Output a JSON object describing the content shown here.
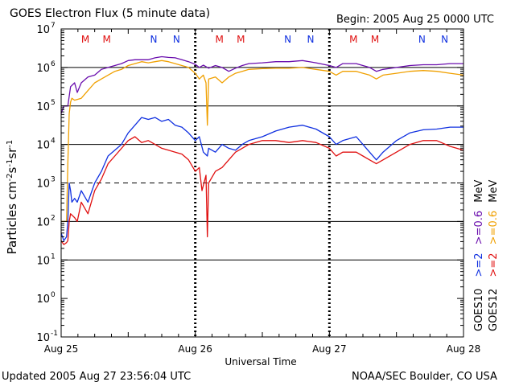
{
  "title": "GOES Electron Flux (5 minute data)",
  "begin_label": "Begin: 2005 Aug 25 0000 UTC",
  "updated_label": "Updated 2005 Aug 27 23:56:04 UTC",
  "credit_label": "NOAA/SEC Boulder, CO USA",
  "colors": {
    "goes10_06": "#6a0dad",
    "goes12_06": "#f0a000",
    "goes10_2": "#1030e0",
    "goes12_2": "#e01010",
    "marker_M": "#e01010",
    "marker_N": "#1030e0"
  },
  "legend": {
    "goes10": {
      "name": "GOES10",
      "thr2": ">=2",
      "thr06": ">=0.6"
    },
    "goes12": {
      "name": "GOES12",
      "thr2": ">=2",
      "thr06": ">=0.6"
    },
    "unit": "MeV"
  },
  "markers": [
    {
      "day": 0.18,
      "label": "M"
    },
    {
      "day": 0.34,
      "label": "M"
    },
    {
      "day": 0.69,
      "label": "N"
    },
    {
      "day": 0.86,
      "label": "N"
    },
    {
      "day": 1.18,
      "label": "M"
    },
    {
      "day": 1.34,
      "label": "M"
    },
    {
      "day": 1.69,
      "label": "N"
    },
    {
      "day": 1.86,
      "label": "N"
    },
    {
      "day": 2.18,
      "label": "M"
    },
    {
      "day": 2.34,
      "label": "M"
    },
    {
      "day": 2.69,
      "label": "N"
    },
    {
      "day": 2.86,
      "label": "N"
    }
  ],
  "chart_data": {
    "type": "line",
    "xlabel": "Universal Time",
    "ylabel": "Particles cm-2s-1sr-1",
    "x_unit": "days since 2005 Aug 25 0000 UTC",
    "xlim": [
      0,
      3
    ],
    "x_ticks": [
      {
        "value": 0,
        "label": "Aug 25"
      },
      {
        "value": 1,
        "label": "Aug 26"
      },
      {
        "value": 2,
        "label": "Aug 27"
      },
      {
        "value": 3,
        "label": "Aug 28"
      }
    ],
    "y_scale": "log",
    "ylim_exp": [
      -1,
      7
    ],
    "y_ticks": [
      {
        "exp": -1,
        "label": "10",
        "sup": "-1"
      },
      {
        "exp": 0,
        "label": "10",
        "sup": "0"
      },
      {
        "exp": 1,
        "label": "10",
        "sup": "1"
      },
      {
        "exp": 2,
        "label": "10",
        "sup": "2"
      },
      {
        "exp": 3,
        "label": "10",
        "sup": "3"
      },
      {
        "exp": 4,
        "label": "10",
        "sup": "4"
      },
      {
        "exp": 5,
        "label": "10",
        "sup": "5"
      },
      {
        "exp": 6,
        "label": "10",
        "sup": "6"
      },
      {
        "exp": 7,
        "label": "10",
        "sup": "7"
      }
    ],
    "gridlines_exp": [
      1,
      2,
      3,
      4,
      5,
      6
    ],
    "dashed_gridline_exp": 3,
    "series": [
      {
        "name": "GOES10 >=0.6 MeV",
        "color_key": "goes10_06",
        "points": [
          [
            0,
            4.8
          ],
          [
            0.02,
            5.0
          ],
          [
            0.05,
            5.0
          ],
          [
            0.07,
            5.5
          ],
          [
            0.1,
            5.6
          ],
          [
            0.12,
            5.35
          ],
          [
            0.15,
            5.6
          ],
          [
            0.2,
            5.75
          ],
          [
            0.25,
            5.8
          ],
          [
            0.3,
            5.95
          ],
          [
            0.35,
            6.0
          ],
          [
            0.4,
            6.05
          ],
          [
            0.45,
            6.1
          ],
          [
            0.5,
            6.18
          ],
          [
            0.55,
            6.2
          ],
          [
            0.6,
            6.2
          ],
          [
            0.65,
            6.2
          ],
          [
            0.7,
            6.25
          ],
          [
            0.75,
            6.28
          ],
          [
            0.8,
            6.26
          ],
          [
            0.85,
            6.25
          ],
          [
            0.9,
            6.2
          ],
          [
            0.95,
            6.15
          ],
          [
            1.0,
            6.08
          ],
          [
            1.03,
            6.0
          ],
          [
            1.06,
            6.06
          ],
          [
            1.1,
            5.98
          ],
          [
            1.15,
            6.05
          ],
          [
            1.2,
            6.0
          ],
          [
            1.25,
            5.9
          ],
          [
            1.3,
            5.98
          ],
          [
            1.35,
            6.05
          ],
          [
            1.4,
            6.1
          ],
          [
            1.5,
            6.12
          ],
          [
            1.6,
            6.15
          ],
          [
            1.7,
            6.15
          ],
          [
            1.8,
            6.18
          ],
          [
            1.9,
            6.12
          ],
          [
            2.0,
            6.05
          ],
          [
            2.05,
            6.0
          ],
          [
            2.1,
            6.1
          ],
          [
            2.2,
            6.1
          ],
          [
            2.25,
            6.05
          ],
          [
            2.3,
            6.0
          ],
          [
            2.35,
            5.9
          ],
          [
            2.4,
            5.95
          ],
          [
            2.5,
            6.0
          ],
          [
            2.6,
            6.05
          ],
          [
            2.7,
            6.07
          ],
          [
            2.8,
            6.07
          ],
          [
            2.9,
            6.1
          ],
          [
            3.0,
            6.1
          ]
        ]
      },
      {
        "name": "GOES12 >=0.6 MeV",
        "color_key": "goes12_06",
        "points": [
          [
            0,
            2.0
          ],
          [
            0.02,
            2.0
          ],
          [
            0.04,
            2.0
          ],
          [
            0.05,
            3.5
          ],
          [
            0.06,
            4.8
          ],
          [
            0.07,
            5.1
          ],
          [
            0.08,
            5.2
          ],
          [
            0.1,
            5.15
          ],
          [
            0.15,
            5.2
          ],
          [
            0.2,
            5.4
          ],
          [
            0.25,
            5.6
          ],
          [
            0.3,
            5.7
          ],
          [
            0.35,
            5.8
          ],
          [
            0.4,
            5.9
          ],
          [
            0.45,
            5.95
          ],
          [
            0.5,
            6.05
          ],
          [
            0.55,
            6.1
          ],
          [
            0.6,
            6.15
          ],
          [
            0.65,
            6.12
          ],
          [
            0.7,
            6.15
          ],
          [
            0.75,
            6.18
          ],
          [
            0.8,
            6.15
          ],
          [
            0.85,
            6.1
          ],
          [
            0.9,
            6.05
          ],
          [
            0.95,
            6.0
          ],
          [
            1.0,
            5.85
          ],
          [
            1.03,
            5.7
          ],
          [
            1.06,
            5.8
          ],
          [
            1.08,
            5.6
          ],
          [
            1.09,
            4.5
          ],
          [
            1.1,
            5.7
          ],
          [
            1.15,
            5.75
          ],
          [
            1.2,
            5.6
          ],
          [
            1.25,
            5.75
          ],
          [
            1.3,
            5.85
          ],
          [
            1.35,
            5.9
          ],
          [
            1.4,
            5.95
          ],
          [
            1.5,
            5.97
          ],
          [
            1.6,
            5.98
          ],
          [
            1.7,
            5.98
          ],
          [
            1.8,
            6.0
          ],
          [
            1.9,
            5.95
          ],
          [
            2.0,
            5.9
          ],
          [
            2.05,
            5.8
          ],
          [
            2.1,
            5.9
          ],
          [
            2.2,
            5.9
          ],
          [
            2.25,
            5.85
          ],
          [
            2.3,
            5.8
          ],
          [
            2.35,
            5.7
          ],
          [
            2.4,
            5.8
          ],
          [
            2.5,
            5.85
          ],
          [
            2.6,
            5.9
          ],
          [
            2.7,
            5.92
          ],
          [
            2.8,
            5.9
          ],
          [
            2.9,
            5.85
          ],
          [
            3.0,
            5.8
          ]
        ]
      },
      {
        "name": "GOES10 >=2 MeV",
        "color_key": "goes10_2",
        "points": [
          [
            0,
            1.7
          ],
          [
            0.02,
            1.5
          ],
          [
            0.04,
            1.6
          ],
          [
            0.05,
            2.0
          ],
          [
            0.06,
            3.0
          ],
          [
            0.07,
            2.8
          ],
          [
            0.08,
            2.5
          ],
          [
            0.1,
            2.6
          ],
          [
            0.12,
            2.5
          ],
          [
            0.15,
            2.8
          ],
          [
            0.2,
            2.5
          ],
          [
            0.25,
            3.0
          ],
          [
            0.3,
            3.3
          ],
          [
            0.35,
            3.7
          ],
          [
            0.4,
            3.85
          ],
          [
            0.45,
            4.0
          ],
          [
            0.5,
            4.3
          ],
          [
            0.55,
            4.5
          ],
          [
            0.6,
            4.7
          ],
          [
            0.65,
            4.65
          ],
          [
            0.7,
            4.7
          ],
          [
            0.75,
            4.6
          ],
          [
            0.8,
            4.65
          ],
          [
            0.85,
            4.5
          ],
          [
            0.9,
            4.45
          ],
          [
            0.95,
            4.3
          ],
          [
            1.0,
            4.1
          ],
          [
            1.03,
            4.2
          ],
          [
            1.06,
            3.8
          ],
          [
            1.09,
            3.7
          ],
          [
            1.1,
            3.9
          ],
          [
            1.15,
            3.8
          ],
          [
            1.2,
            4.0
          ],
          [
            1.25,
            3.9
          ],
          [
            1.3,
            3.85
          ],
          [
            1.35,
            4.0
          ],
          [
            1.4,
            4.1
          ],
          [
            1.5,
            4.2
          ],
          [
            1.6,
            4.35
          ],
          [
            1.7,
            4.45
          ],
          [
            1.8,
            4.5
          ],
          [
            1.9,
            4.4
          ],
          [
            2.0,
            4.2
          ],
          [
            2.05,
            4.0
          ],
          [
            2.1,
            4.1
          ],
          [
            2.2,
            4.2
          ],
          [
            2.25,
            4.0
          ],
          [
            2.3,
            3.8
          ],
          [
            2.35,
            3.6
          ],
          [
            2.4,
            3.8
          ],
          [
            2.5,
            4.1
          ],
          [
            2.6,
            4.3
          ],
          [
            2.7,
            4.38
          ],
          [
            2.8,
            4.4
          ],
          [
            2.9,
            4.45
          ],
          [
            3.0,
            4.45
          ]
        ]
      },
      {
        "name": "GOES12 >=2 MeV",
        "color_key": "goes12_2",
        "points": [
          [
            0,
            1.5
          ],
          [
            0.02,
            1.4
          ],
          [
            0.04,
            1.45
          ],
          [
            0.05,
            1.5
          ],
          [
            0.06,
            2.0
          ],
          [
            0.07,
            2.2
          ],
          [
            0.1,
            2.1
          ],
          [
            0.12,
            2.0
          ],
          [
            0.15,
            2.5
          ],
          [
            0.2,
            2.2
          ],
          [
            0.25,
            2.8
          ],
          [
            0.3,
            3.1
          ],
          [
            0.35,
            3.5
          ],
          [
            0.4,
            3.7
          ],
          [
            0.45,
            3.9
          ],
          [
            0.5,
            4.1
          ],
          [
            0.55,
            4.2
          ],
          [
            0.6,
            4.05
          ],
          [
            0.65,
            4.1
          ],
          [
            0.7,
            4.0
          ],
          [
            0.75,
            3.9
          ],
          [
            0.8,
            3.85
          ],
          [
            0.85,
            3.8
          ],
          [
            0.9,
            3.75
          ],
          [
            0.95,
            3.6
          ],
          [
            1.0,
            3.3
          ],
          [
            1.03,
            3.4
          ],
          [
            1.05,
            2.8
          ],
          [
            1.08,
            3.2
          ],
          [
            1.09,
            1.6
          ],
          [
            1.1,
            3.0
          ],
          [
            1.15,
            3.3
          ],
          [
            1.2,
            3.4
          ],
          [
            1.25,
            3.6
          ],
          [
            1.3,
            3.8
          ],
          [
            1.35,
            3.9
          ],
          [
            1.4,
            4.0
          ],
          [
            1.5,
            4.1
          ],
          [
            1.6,
            4.1
          ],
          [
            1.7,
            4.05
          ],
          [
            1.8,
            4.1
          ],
          [
            1.9,
            4.05
          ],
          [
            2.0,
            3.9
          ],
          [
            2.05,
            3.7
          ],
          [
            2.1,
            3.8
          ],
          [
            2.2,
            3.8
          ],
          [
            2.25,
            3.7
          ],
          [
            2.3,
            3.6
          ],
          [
            2.35,
            3.5
          ],
          [
            2.4,
            3.6
          ],
          [
            2.5,
            3.8
          ],
          [
            2.6,
            4.0
          ],
          [
            2.7,
            4.1
          ],
          [
            2.8,
            4.1
          ],
          [
            2.9,
            3.95
          ],
          [
            3.0,
            3.85
          ]
        ]
      }
    ]
  }
}
